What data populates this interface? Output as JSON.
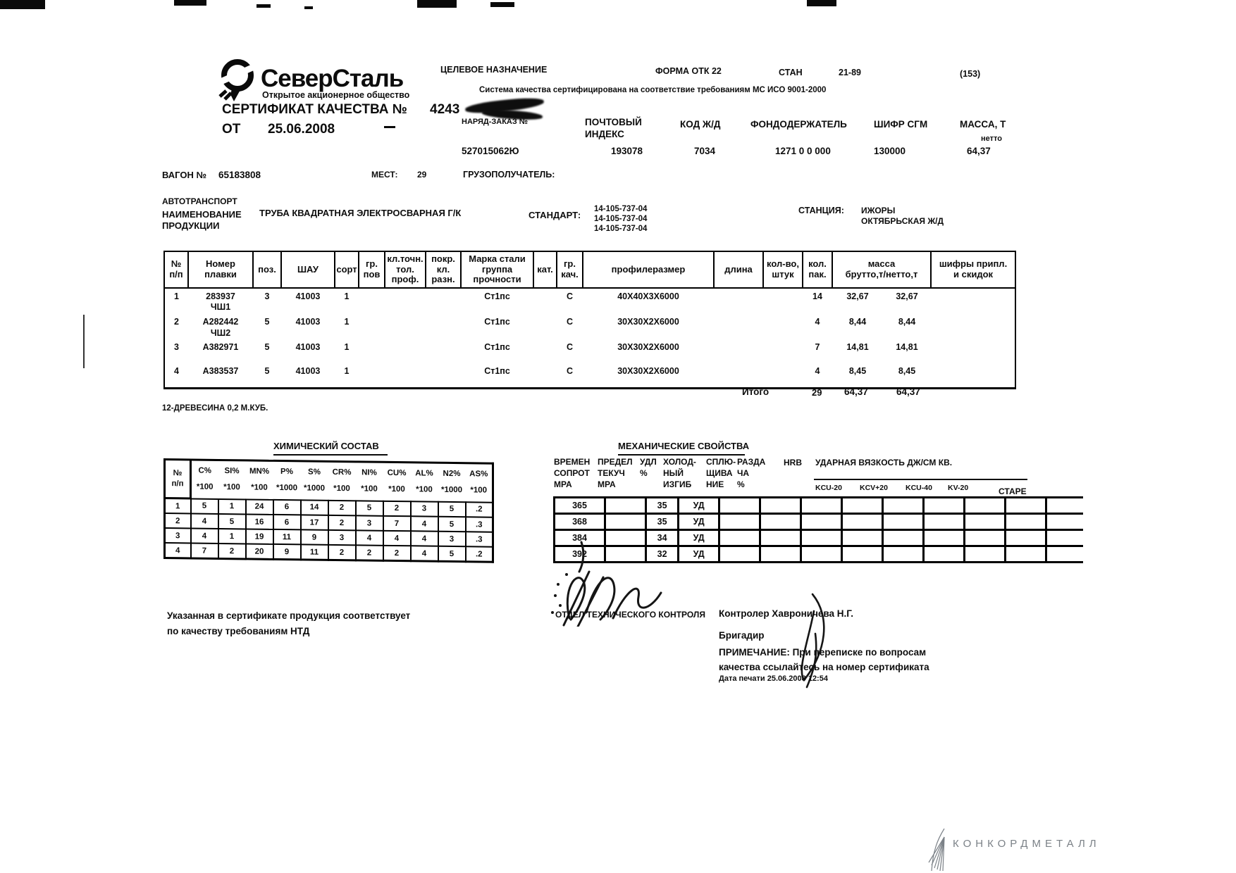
{
  "header": {
    "company": "СеверСталь",
    "company_sub": "Открытое акционерное общество",
    "cert_title": "СЕРТИФИКАТ КАЧЕСТВА №",
    "cert_number": "4243",
    "from_label": "ОТ",
    "cert_date": "25.06.2008",
    "purpose_label": "ЦЕЛЕВОЕ НАЗНАЧЕНИЕ",
    "form_label": "ФОРМА ОТК 22",
    "stan_label": "СТАН",
    "stan_value": "21-89",
    "page_code": "(153)",
    "iso_line": "Система качества сертифицирована на соответствие требованиям МС ИСО 9001-2000",
    "order_label": "НАРЯД-ЗАКАЗ №",
    "order_value": "527015062Ю",
    "postal_label": "ПОЧТОВЫЙ\nИНДЕКС",
    "postal_value": "193078",
    "rail_label": "КОД Ж/Д",
    "rail_value": "7034",
    "fund_label": "ФОНДОДЕРЖАТЕЛЬ",
    "fund_value": "1271 0 0 000",
    "cipher_label": "ШИФР СГМ",
    "cipher_value": "130000",
    "mass_label": "МАССА, Т",
    "mass_sub": "нетто",
    "mass_value": "64,37"
  },
  "shipment": {
    "wagon_label": "ВАГОН №",
    "wagon_value": "65183808",
    "mest_label": "МЕСТ:",
    "mest_value": "29",
    "consignee_label": "ГРУЗОПОЛУЧАТЕЛЬ:",
    "transport": "АВТОТРАНСПОРТ",
    "product_label": "НАИМЕНОВАНИЕ\nПРОДУКЦИИ",
    "product_value": "ТРУБА КВАДРАТНАЯ ЭЛЕКТРОСВАРНАЯ Г/К",
    "standard_label": "СТАНДАРТ:",
    "standards": "14-105-737-04\n14-105-737-04\n14-105-737-04",
    "station_label": "СТАНЦИЯ:",
    "station_value": "ИЖОРЫ",
    "railway_value": "ОКТЯБРЬСКАЯ Ж/Д"
  },
  "main_table": {
    "headers": [
      "№\nп/п",
      "Номер\nплавки",
      "поз.",
      "ШАУ",
      "сорт",
      "гр.\nпов",
      "кл.точн.\nтол.\nпроф.",
      "покр.\nкл.\nразн.",
      "Марка стали\nгруппа\nпрочности",
      "кат.",
      "гр.\nкач.",
      "профилеразмер",
      "длина",
      "кол-во,\nштук",
      "кол.\nпак.",
      "масса\nбрутто,т/нетто,т",
      "шифры припл.\nи скидок"
    ],
    "rows": [
      [
        "1",
        "283937\nЧШ1",
        "3",
        "41003",
        "1",
        "",
        "",
        "",
        "Ст1пс",
        "",
        "С",
        "40Х40Х3Х6000",
        "",
        "",
        "14",
        "32,67",
        "32,67",
        ""
      ],
      [
        "2",
        "А282442\nЧШ2",
        "5",
        "41003",
        "1",
        "",
        "",
        "",
        "Ст1пс",
        "",
        "С",
        "30Х30Х2Х6000",
        "",
        "",
        "4",
        "8,44",
        "8,44",
        ""
      ],
      [
        "3",
        "А382971",
        "5",
        "41003",
        "1",
        "",
        "",
        "",
        "Ст1пс",
        "",
        "С",
        "30Х30Х2Х6000",
        "",
        "",
        "7",
        "14,81",
        "14,81",
        ""
      ],
      [
        "4",
        "А383537",
        "5",
        "41003",
        "1",
        "",
        "",
        "",
        "Ст1пс",
        "",
        "С",
        "30Х30Х2Х6000",
        "",
        "",
        "4",
        "8,45",
        "8,45",
        ""
      ]
    ],
    "total_label": "Итого",
    "total_count": "29",
    "total_gross": "64,37",
    "total_net": "64,37"
  },
  "note_line": "12-ДРЕВЕСИНА 0,2 М.КУБ.",
  "chem": {
    "title": "ХИМИЧЕСКИЙ СОСТАВ",
    "headers": [
      "№\nп/п",
      "C%\n*100",
      "SI%\n*100",
      "MN%\n*100",
      "P%\n*1000",
      "S%\n*1000",
      "CR%\n*100",
      "NI%\n*100",
      "CU%\n*100",
      "AL%\n*100",
      "N2%\n*1000",
      "AS%\n*100"
    ],
    "rows": [
      [
        "1",
        "5",
        "1",
        "24",
        "6",
        "14",
        "2",
        "5",
        "2",
        "3",
        "5",
        ".2"
      ],
      [
        "2",
        "4",
        "5",
        "16",
        "6",
        "17",
        "2",
        "3",
        "7",
        "4",
        "5",
        ".3"
      ],
      [
        "3",
        "4",
        "1",
        "19",
        "11",
        "9",
        "3",
        "4",
        "4",
        "4",
        "3",
        ".3"
      ],
      [
        "4",
        "7",
        "2",
        "20",
        "9",
        "11",
        "2",
        "2",
        "2",
        "4",
        "5",
        ".2"
      ]
    ]
  },
  "mech": {
    "title": "МЕХАНИЧЕСКИЕ СВОЙСТВА",
    "cols": [
      "ВРЕМЕН\nСОПРОТ\nМРА",
      "ПРЕДЕЛ\nТЕКУЧ\nМРА",
      "УДЛ\n%",
      "ХОЛОД-\nНЫЙ\nИЗГИБ",
      "СПЛЮ-\nЩИВА\nНИЕ",
      "РАЗДА\nЧА\n%",
      "HRB"
    ],
    "impact_title": "УДАРНАЯ ВЯЗКОСТЬ ДЖ/СМ КВ.",
    "impact_cols": [
      "KCU-20",
      "KCV+20",
      "KCU-40",
      "KV-20"
    ],
    "aging_label": "СТАРЕ",
    "rows": [
      [
        "365",
        "",
        "35",
        "УД",
        "",
        "",
        "",
        "",
        "",
        "",
        "",
        "",
        ""
      ],
      [
        "368",
        "",
        "35",
        "УД",
        "",
        "",
        "",
        "",
        "",
        "",
        "",
        "",
        ""
      ],
      [
        "384",
        "",
        "34",
        "УД",
        "",
        "",
        "",
        "",
        "",
        "",
        "",
        "",
        ""
      ],
      [
        "392",
        "",
        "32",
        "УД",
        "",
        "",
        "",
        "",
        "",
        "",
        "",
        "",
        ""
      ]
    ]
  },
  "footer": {
    "conform_text": "Указанная в сертификате продукция соответствует\nпо качеству требованиям НТД",
    "otk": "ОТДЕЛ ТЕХНИЧЕСКОГО КОНТРОЛЯ",
    "controller": "Контролер  Хавроничева Н.Г.",
    "brigadir": "Бригадир",
    "remark": "ПРИМЕЧАНИЕ: При переписке по вопросам\nкачества ссылайтесь на номер сертификата",
    "print_date": "Дата печати 25.06.2008 12:54",
    "watermark": "КОНКОРДМЕТАЛЛ"
  }
}
